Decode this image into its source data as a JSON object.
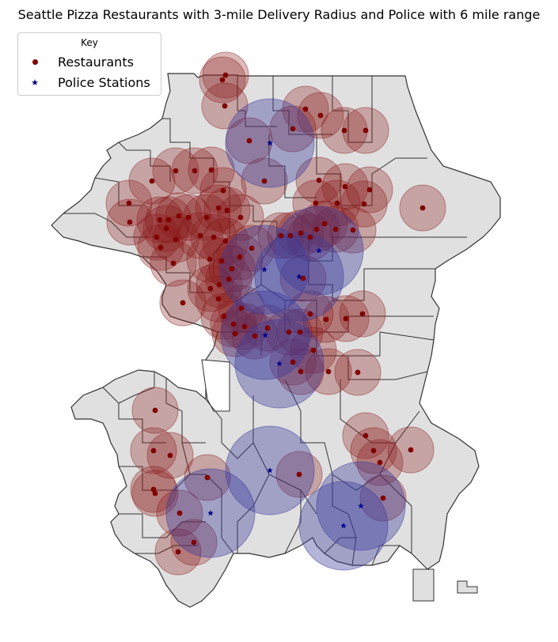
{
  "title": "Seattle Pizza Restaurants with 3-mile Delivery Radius and Police with 6 mile range",
  "legend": {
    "title": "Key",
    "items": [
      {
        "label": "Restaurants",
        "icon": "dot-icon",
        "color": "#800000"
      },
      {
        "label": "Police Stations",
        "icon": "star-icon",
        "color": "#00008b"
      }
    ]
  },
  "colors": {
    "land": "#e0e0e0",
    "boundary": "#333333",
    "restaurant_marker": "#800000",
    "restaurant_buffer": "#8b1a1a",
    "police_marker": "#00008b",
    "police_buffer": "#3a3a9a"
  },
  "chart_data": {
    "type": "map",
    "layers": [
      {
        "name": "Restaurants",
        "kind": "point",
        "buffer": "3-mile delivery radius"
      },
      {
        "name": "Police Stations",
        "kind": "point",
        "buffer": "6 mile range"
      }
    ]
  }
}
